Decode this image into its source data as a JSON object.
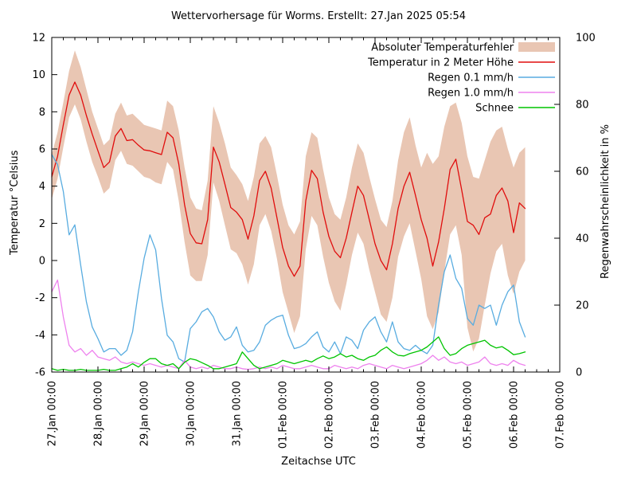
{
  "title": "Wettervorhersage für Worms. Erstellt: 27.Jan 2025 05:54",
  "axes": {
    "left_label": "Temperatur °Celsius",
    "right_label": "Regenwahrscheinlichkeit in %",
    "bottom_label": "Zeitachse UTC",
    "temp_ticks": [
      12,
      10,
      8,
      6,
      4,
      2,
      0,
      -2,
      -4,
      -6
    ],
    "percent_ticks": [
      100,
      80,
      60,
      40,
      20,
      0
    ]
  },
  "chart_data": {
    "type": "line",
    "title": "Wettervorhersage für Worms. Erstellt: 27.Jan 2025 05:54",
    "xlabel": "Zeitachse UTC",
    "ylabel_left": "Temperatur °Celsius",
    "ylabel_right": "Regenwahrscheinlichkeit in %",
    "temp_range": [
      -6,
      12
    ],
    "percent_range": [
      0,
      100
    ],
    "grid": false,
    "legend_position": "top-right",
    "x_tick_labels": [
      "27.Jan 00:00",
      "28.Jan 00:00",
      "29.Jan 00:00",
      "30.Jan 00:00",
      "31.Jan 00:00",
      "01.Feb 00:00",
      "02.Feb 00:00",
      "03.Feb 00:00",
      "04.Feb 00:00",
      "05.Feb 00:00",
      "06.Feb 00:00",
      "07.Feb 00:00"
    ],
    "time_start": "27.Jan 00:00",
    "time_end": "06.Feb 06:00",
    "time_step_hours": 3,
    "series": [
      {
        "name": "Absoluter Temperaturfehler",
        "kind": "band",
        "axis": "temp",
        "color": "#e9c6b3",
        "upper": [
          5.7,
          6.9,
          8.5,
          10.2,
          11.3,
          10.4,
          9.2,
          8.0,
          7.1,
          6.2,
          6.5,
          7.9,
          8.5,
          7.8,
          7.9,
          7.6,
          7.3,
          7.2,
          7.1,
          7.0,
          8.6,
          8.3,
          7.0,
          5.0,
          3.4,
          2.8,
          2.7,
          4.3,
          8.3,
          7.4,
          6.3,
          5.0,
          4.6,
          4.1,
          3.2,
          4.5,
          6.3,
          6.7,
          6.1,
          4.6,
          3.0,
          1.9,
          1.4,
          2.1,
          5.6,
          6.9,
          6.6,
          4.9,
          3.4,
          2.5,
          2.2,
          3.4,
          5.0,
          6.3,
          5.8,
          4.5,
          3.3,
          2.2,
          1.8,
          3.2,
          5.4,
          6.9,
          7.7,
          6.2,
          5.0,
          5.8,
          5.2,
          5.6,
          7.2,
          8.3,
          8.5,
          7.4,
          5.6,
          4.5,
          4.4,
          5.4,
          6.4,
          7.0,
          7.2,
          6.0,
          5.0,
          5.8,
          6.1
        ],
        "lower": [
          3.3,
          4.4,
          6.1,
          7.7,
          8.4,
          7.6,
          6.4,
          5.3,
          4.5,
          3.6,
          3.9,
          5.4,
          5.9,
          5.2,
          5.1,
          4.8,
          4.5,
          4.4,
          4.2,
          4.1,
          5.3,
          4.9,
          3.2,
          1.0,
          -0.8,
          -1.1,
          -1.1,
          0.3,
          4.2,
          3.2,
          1.9,
          0.6,
          0.4,
          -0.2,
          -1.3,
          -0.2,
          1.9,
          2.5,
          1.6,
          0.1,
          -1.7,
          -2.8,
          -3.9,
          -3.0,
          0.6,
          2.4,
          1.9,
          0.2,
          -1.2,
          -2.2,
          -2.7,
          -1.3,
          0.3,
          1.5,
          0.9,
          -0.5,
          -1.7,
          -2.9,
          -3.3,
          -2.0,
          0.2,
          1.3,
          2.0,
          0.5,
          -1.0,
          -3.0,
          -3.7,
          -2.8,
          -0.6,
          1.4,
          1.9,
          0.3,
          -3.6,
          -4.9,
          -4.2,
          -2.4,
          -0.7,
          0.5,
          0.9,
          -0.8,
          -1.8,
          -0.6,
          0.0
        ]
      },
      {
        "name": "Temperatur in 2 Meter Höhe",
        "kind": "line",
        "axis": "temp",
        "color": "#e00d0d",
        "values": [
          4.5,
          5.6,
          7.3,
          8.9,
          9.6,
          8.9,
          7.8,
          6.8,
          5.9,
          5.0,
          5.3,
          6.7,
          7.1,
          6.45,
          6.5,
          6.2,
          5.95,
          5.9,
          5.8,
          5.7,
          6.9,
          6.6,
          5.2,
          3.0,
          1.45,
          0.95,
          0.9,
          2.2,
          6.1,
          5.3,
          4.1,
          2.85,
          2.6,
          2.2,
          1.15,
          2.4,
          4.3,
          4.8,
          3.9,
          2.3,
          0.7,
          -0.3,
          -0.85,
          -0.3,
          3.2,
          4.85,
          4.4,
          2.6,
          1.3,
          0.5,
          0.15,
          1.2,
          2.6,
          4.0,
          3.5,
          2.2,
          0.9,
          0.0,
          -0.5,
          0.9,
          2.8,
          4.0,
          4.75,
          3.5,
          2.2,
          1.2,
          -0.3,
          1.0,
          2.8,
          4.9,
          5.45,
          3.8,
          2.1,
          1.9,
          1.4,
          2.3,
          2.5,
          3.5,
          3.9,
          3.2,
          1.5,
          3.1,
          2.8
        ]
      },
      {
        "name": "Regen 0.1 mm/h",
        "kind": "line",
        "axis": "percent",
        "color": "#58ace0",
        "values": [
          65,
          62,
          54,
          41,
          44,
          32,
          21,
          13.5,
          10,
          6,
          7,
          7,
          5,
          6.5,
          12,
          24,
          34,
          41,
          36.5,
          22,
          11,
          9,
          4,
          3,
          13,
          15,
          18,
          19,
          16.5,
          12,
          9.5,
          10.5,
          13.5,
          8,
          6,
          6.5,
          9,
          14,
          15.5,
          16.5,
          17,
          11,
          7,
          7.5,
          8.5,
          10.5,
          12,
          7.5,
          6,
          9,
          5.5,
          10.5,
          9.5,
          7,
          12.5,
          15,
          16.5,
          12,
          9,
          15,
          9,
          7,
          6.5,
          8,
          6.5,
          5.5,
          8,
          20,
          30,
          35,
          28,
          25,
          16,
          14,
          20,
          19,
          20,
          14,
          20,
          24,
          26,
          15,
          10.5
        ]
      },
      {
        "name": "Regen 1.0 mm/h",
        "kind": "line",
        "axis": "percent",
        "color": "#ee82ee",
        "values": [
          24,
          27.5,
          16.5,
          8,
          6,
          7,
          5,
          6.5,
          4.5,
          4,
          3.5,
          4.5,
          3,
          2.5,
          3,
          2.5,
          2,
          2.5,
          2,
          1.5,
          2,
          1.5,
          1,
          3.5,
          1.5,
          1,
          1.5,
          1,
          2,
          1.5,
          1,
          1,
          1.5,
          1,
          0.8,
          1,
          1.5,
          1,
          1.5,
          1,
          2,
          1.5,
          1,
          1,
          1.5,
          2,
          1.5,
          1,
          1,
          2,
          1.5,
          1,
          1.5,
          1,
          2,
          2.5,
          2,
          1.5,
          1,
          2,
          1.5,
          1,
          1.5,
          2,
          2.5,
          3.5,
          5,
          3.5,
          4.5,
          3,
          2.5,
          3,
          2,
          2.5,
          3,
          4.5,
          2.5,
          2,
          2.5,
          2,
          3.5,
          2.5,
          2
        ]
      },
      {
        "name": "Schnee",
        "kind": "line",
        "axis": "percent",
        "color": "#00c400",
        "values": [
          1,
          0.5,
          0.8,
          0.5,
          0.5,
          0.8,
          0.5,
          0.5,
          0.5,
          0.8,
          0.5,
          0.5,
          1,
          1.5,
          2.5,
          1.5,
          2.9,
          4,
          4,
          2.5,
          2,
          2.5,
          1,
          2.9,
          4,
          3.6,
          2.8,
          2,
          1,
          1,
          1.5,
          2,
          2.5,
          6,
          4,
          2,
          1,
          1.5,
          2,
          2.5,
          3.5,
          3,
          2.5,
          3,
          3.5,
          3,
          4,
          4.8,
          4,
          4.5,
          5.5,
          4.5,
          5,
          4,
          3.5,
          4.5,
          5,
          6.5,
          7.5,
          6,
          5,
          4.8,
          5.5,
          6,
          6.5,
          7.5,
          9,
          10.5,
          7,
          5,
          5.5,
          7,
          8,
          8.5,
          9,
          9.5,
          8,
          7.2,
          7.6,
          6.5,
          5.2,
          5.5,
          6
        ]
      }
    ]
  }
}
